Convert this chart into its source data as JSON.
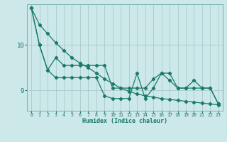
{
  "xlabel": "Humidex (Indice chaleur)",
  "background_color": "#cce8e8",
  "grid_color": "#aacccc",
  "line_color": "#1a7a6a",
  "spine_color": "#7ab0b0",
  "xlim": [
    -0.5,
    23.5
  ],
  "ylim": [
    8.55,
    10.9
  ],
  "yticks": [
    9,
    10
  ],
  "ytick_labels": [
    "9",
    "10"
  ],
  "xticks": [
    0,
    1,
    2,
    3,
    4,
    5,
    6,
    7,
    8,
    9,
    10,
    11,
    12,
    13,
    14,
    15,
    16,
    17,
    18,
    19,
    20,
    21,
    22,
    23
  ],
  "series": [
    [
      10.82,
      10.0,
      9.45,
      9.28,
      9.28,
      9.28,
      9.28,
      9.28,
      9.28,
      8.88,
      8.82,
      8.82,
      8.82,
      9.38,
      8.82,
      9.05,
      9.38,
      9.38,
      9.05,
      9.05,
      9.05,
      9.05,
      9.05,
      8.7
    ],
    [
      10.82,
      10.0,
      9.45,
      9.72,
      9.55,
      9.55,
      9.55,
      9.55,
      9.55,
      9.55,
      9.05,
      9.05,
      9.05,
      9.05,
      9.05,
      9.25,
      9.38,
      9.22,
      9.05,
      9.05,
      9.22,
      9.05,
      9.05,
      8.7
    ],
    [
      10.82,
      10.45,
      10.25,
      10.05,
      9.88,
      9.72,
      9.6,
      9.5,
      9.38,
      9.25,
      9.15,
      9.05,
      8.98,
      8.92,
      8.88,
      8.85,
      8.82,
      8.8,
      8.78,
      8.76,
      8.74,
      8.72,
      8.7,
      8.68
    ]
  ]
}
